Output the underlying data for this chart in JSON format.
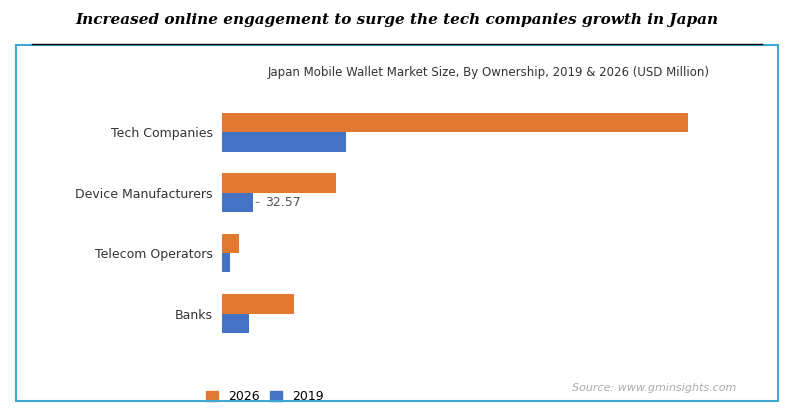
{
  "title": "Japan Mobile Wallet Market Size, By Ownership, 2019 & 2026 (USD Million)",
  "headline": "Increased online engagement to surge the tech companies growth in Japan",
  "categories": [
    "Banks",
    "Telecom Operators",
    "Device Manufacturers",
    "Tech Companies"
  ],
  "values_2026": [
    75,
    18,
    120,
    490
  ],
  "values_2019": [
    28,
    8,
    32.57,
    130
  ],
  "color_2026": "#E07830",
  "color_2019": "#4472C4",
  "annotation_value": "32.57",
  "source_text": "Source: www.gminsights.com",
  "legend_2026": "2026",
  "legend_2019": "2019",
  "bg_color": "#FFFFFF",
  "border_color": "#3DA8D4",
  "headline_color": "#000000",
  "bar_height": 0.32,
  "xlim": [
    0,
    560
  ]
}
